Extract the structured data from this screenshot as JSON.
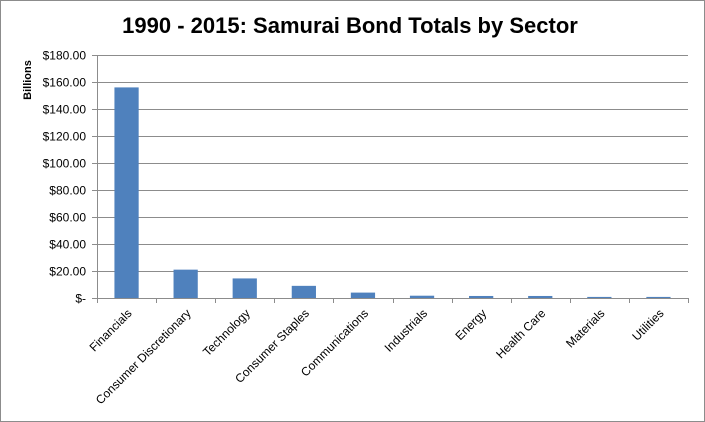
{
  "chart_data": {
    "type": "bar",
    "title": "1990 - 2015: Samurai Bond Totals by Sector",
    "xlabel": "",
    "ylabel": "Billions",
    "categories": [
      "Financials",
      "Consumer Discretionary",
      "Technology",
      "Consumer Staples",
      "Communications",
      "Industrials",
      "Energy",
      "Health Care",
      "Materials",
      "Utilities"
    ],
    "values": [
      156,
      21,
      14.5,
      9,
      4,
      1.7,
      1.5,
      1.5,
      0.8,
      0.8
    ],
    "ylim": [
      0,
      180
    ],
    "yticks": [
      0,
      20,
      40,
      60,
      80,
      100,
      120,
      140,
      160,
      180
    ],
    "ytick_labels": [
      "$-",
      "$20.00",
      "$40.00",
      "$60.00",
      "$80.00",
      "$100.00",
      "$120.00",
      "$140.00",
      "$160.00",
      "$180.00"
    ],
    "grid": true,
    "legend": "none",
    "bar_color": "#4f81bd"
  }
}
